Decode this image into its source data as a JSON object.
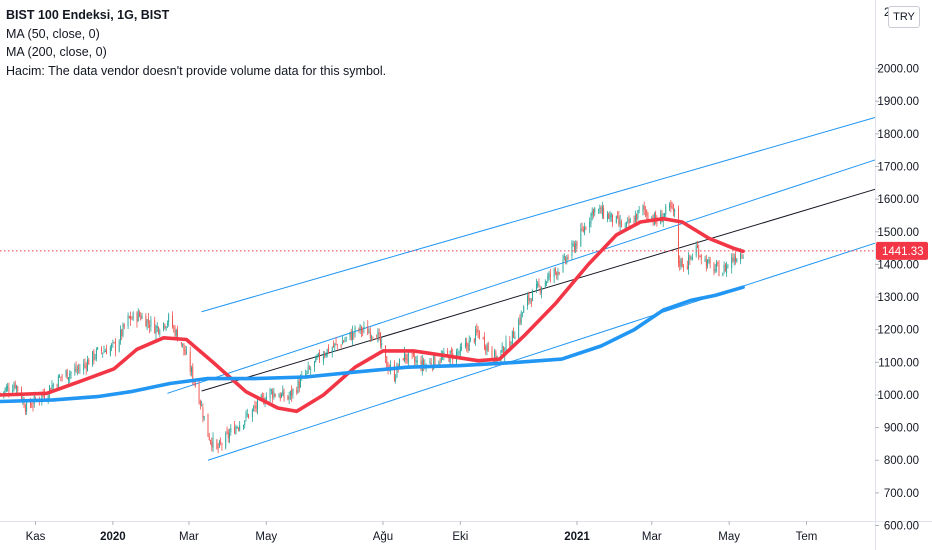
{
  "legend": {
    "title": "BIST 100 Endeksi, 1G, BIST",
    "ma50": "MA (50, close, 0)",
    "ma200": "MA (200, close, 0)",
    "volume": "Hacim: The data vendor doesn't provide volume data for this symbol."
  },
  "currency_button": "TRY",
  "chart_data": {
    "type": "candlestick",
    "y_axis": {
      "position": "right",
      "range": [
        525,
        2210
      ],
      "ticks": [
        600,
        700,
        800,
        900,
        1000,
        1100,
        1200,
        1300,
        1400,
        1500,
        1600,
        1700,
        1800,
        1900,
        2000
      ],
      "tick_labels": [
        "600.00",
        "700.00",
        "800.00",
        "900.00",
        "1000.00",
        "1100.00",
        "1200.00",
        "1300.00",
        "1400.00",
        "1500.00",
        "1600.00",
        "1700.00",
        "1800.00",
        "1900.00",
        "2000.00"
      ],
      "top_partial_label": "2"
    },
    "x_axis": {
      "range": [
        "2019-10-04",
        "2021-08-24"
      ],
      "ticks": [
        {
          "date": "2019-11-01",
          "label": "Kas",
          "bold": false
        },
        {
          "date": "2020-01-01",
          "label": "2020",
          "bold": true
        },
        {
          "date": "2020-03-01",
          "label": "Mar",
          "bold": false
        },
        {
          "date": "2020-05-01",
          "label": "May",
          "bold": false
        },
        {
          "date": "2020-08-01",
          "label": "Ağu",
          "bold": false
        },
        {
          "date": "2020-10-01",
          "label": "Eki",
          "bold": false
        },
        {
          "date": "2021-01-01",
          "label": "2021",
          "bold": true
        },
        {
          "date": "2021-03-01",
          "label": "Mar",
          "bold": false
        },
        {
          "date": "2021-05-01",
          "label": "May",
          "bold": false
        },
        {
          "date": "2021-07-01",
          "label": "Tem",
          "bold": false
        }
      ]
    },
    "price_path": [
      [
        "2019-10-04",
        1005
      ],
      [
        "2019-10-16",
        1035
      ],
      [
        "2019-10-25",
        960
      ],
      [
        "2019-11-08",
        1005
      ],
      [
        "2019-11-22",
        1060
      ],
      [
        "2019-12-06",
        1080
      ],
      [
        "2019-12-20",
        1130
      ],
      [
        "2020-01-03",
        1150
      ],
      [
        "2020-01-13",
        1230
      ],
      [
        "2020-01-22",
        1245
      ],
      [
        "2020-02-04",
        1205
      ],
      [
        "2020-02-14",
        1230
      ],
      [
        "2020-02-24",
        1160
      ],
      [
        "2020-03-02",
        1080
      ],
      [
        "2020-03-09",
        995
      ],
      [
        "2020-03-16",
        880
      ],
      [
        "2020-03-23",
        830
      ],
      [
        "2020-04-06",
        900
      ],
      [
        "2020-04-20",
        950
      ],
      [
        "2020-05-04",
        1010
      ],
      [
        "2020-05-18",
        990
      ],
      [
        "2020-06-01",
        1060
      ],
      [
        "2020-06-15",
        1130
      ],
      [
        "2020-06-29",
        1160
      ],
      [
        "2020-07-13",
        1200
      ],
      [
        "2020-07-27",
        1190
      ],
      [
        "2020-08-03",
        1100
      ],
      [
        "2020-08-10",
        1060
      ],
      [
        "2020-08-17",
        1120
      ],
      [
        "2020-09-01",
        1090
      ],
      [
        "2020-09-15",
        1110
      ],
      [
        "2020-10-01",
        1130
      ],
      [
        "2020-10-15",
        1190
      ],
      [
        "2020-10-29",
        1110
      ],
      [
        "2020-11-09",
        1160
      ],
      [
        "2020-11-23",
        1290
      ],
      [
        "2020-12-07",
        1350
      ],
      [
        "2020-12-21",
        1400
      ],
      [
        "2021-01-04",
        1490
      ],
      [
        "2021-01-14",
        1570
      ],
      [
        "2021-01-25",
        1550
      ],
      [
        "2021-02-08",
        1510
      ],
      [
        "2021-02-22",
        1570
      ],
      [
        "2021-03-05",
        1530
      ],
      [
        "2021-03-15",
        1570
      ],
      [
        "2021-03-19",
        1555
      ],
      [
        "2021-03-22",
        1410
      ],
      [
        "2021-03-29",
        1400
      ],
      [
        "2021-04-05",
        1450
      ],
      [
        "2021-04-16",
        1390
      ],
      [
        "2021-04-26",
        1380
      ],
      [
        "2021-05-04",
        1420
      ],
      [
        "2021-05-12",
        1441.33
      ]
    ],
    "series": [
      {
        "name": "MA (50, close, 0)",
        "color": "#f23645",
        "values": [
          [
            "2019-10-04",
            1000
          ],
          [
            "2019-11-10",
            1005
          ],
          [
            "2019-12-05",
            1040
          ],
          [
            "2020-01-02",
            1080
          ],
          [
            "2020-01-20",
            1140
          ],
          [
            "2020-02-10",
            1175
          ],
          [
            "2020-02-28",
            1170
          ],
          [
            "2020-03-20",
            1100
          ],
          [
            "2020-04-15",
            1010
          ],
          [
            "2020-05-10",
            960
          ],
          [
            "2020-05-25",
            950
          ],
          [
            "2020-06-15",
            1000
          ],
          [
            "2020-07-10",
            1085
          ],
          [
            "2020-08-01",
            1135
          ],
          [
            "2020-08-25",
            1135
          ],
          [
            "2020-09-20",
            1120
          ],
          [
            "2020-10-15",
            1105
          ],
          [
            "2020-11-01",
            1110
          ],
          [
            "2020-11-20",
            1180
          ],
          [
            "2020-12-15",
            1280
          ],
          [
            "2021-01-10",
            1400
          ],
          [
            "2021-02-01",
            1490
          ],
          [
            "2021-02-20",
            1530
          ],
          [
            "2021-03-10",
            1540
          ],
          [
            "2021-03-25",
            1530
          ],
          [
            "2021-04-15",
            1480
          ],
          [
            "2021-05-04",
            1450
          ],
          [
            "2021-05-12",
            1440
          ]
        ]
      },
      {
        "name": "MA (200, close, 0)",
        "color": "#2196f3",
        "values": [
          [
            "2019-10-04",
            980
          ],
          [
            "2019-11-15",
            985
          ],
          [
            "2019-12-20",
            995
          ],
          [
            "2020-01-15",
            1010
          ],
          [
            "2020-02-15",
            1035
          ],
          [
            "2020-03-15",
            1050
          ],
          [
            "2020-04-20",
            1050
          ],
          [
            "2020-06-01",
            1055
          ],
          [
            "2020-07-10",
            1070
          ],
          [
            "2020-08-20",
            1085
          ],
          [
            "2020-10-01",
            1090
          ],
          [
            "2020-11-15",
            1100
          ],
          [
            "2020-12-20",
            1110
          ],
          [
            "2021-01-20",
            1150
          ],
          [
            "2021-02-15",
            1200
          ],
          [
            "2021-03-10",
            1260
          ],
          [
            "2021-04-01",
            1290
          ],
          [
            "2021-04-20",
            1305
          ],
          [
            "2021-05-12",
            1330
          ]
        ]
      }
    ],
    "trend_channel": {
      "middle": {
        "color": "#131722",
        "from": [
          "2020-03-11",
          1012
        ],
        "to": [
          "2021-08-24",
          1630
        ]
      },
      "upper_outer": {
        "color": "#2196f3",
        "from": [
          "2020-03-11",
          1255
        ],
        "to": [
          "2021-08-24",
          1850
        ]
      },
      "upper_inner": {
        "color": "#2196f3",
        "from": [
          "2020-02-13",
          1005
        ],
        "to": [
          "2021-08-24",
          1720
        ]
      },
      "lower": {
        "color": "#2196f3",
        "from": [
          "2020-03-16",
          800
        ],
        "to": [
          "2021-08-24",
          1465
        ]
      }
    },
    "last_price": {
      "value": 1441.33,
      "label": "1441.33",
      "color": "#f23645"
    },
    "grid": false
  }
}
